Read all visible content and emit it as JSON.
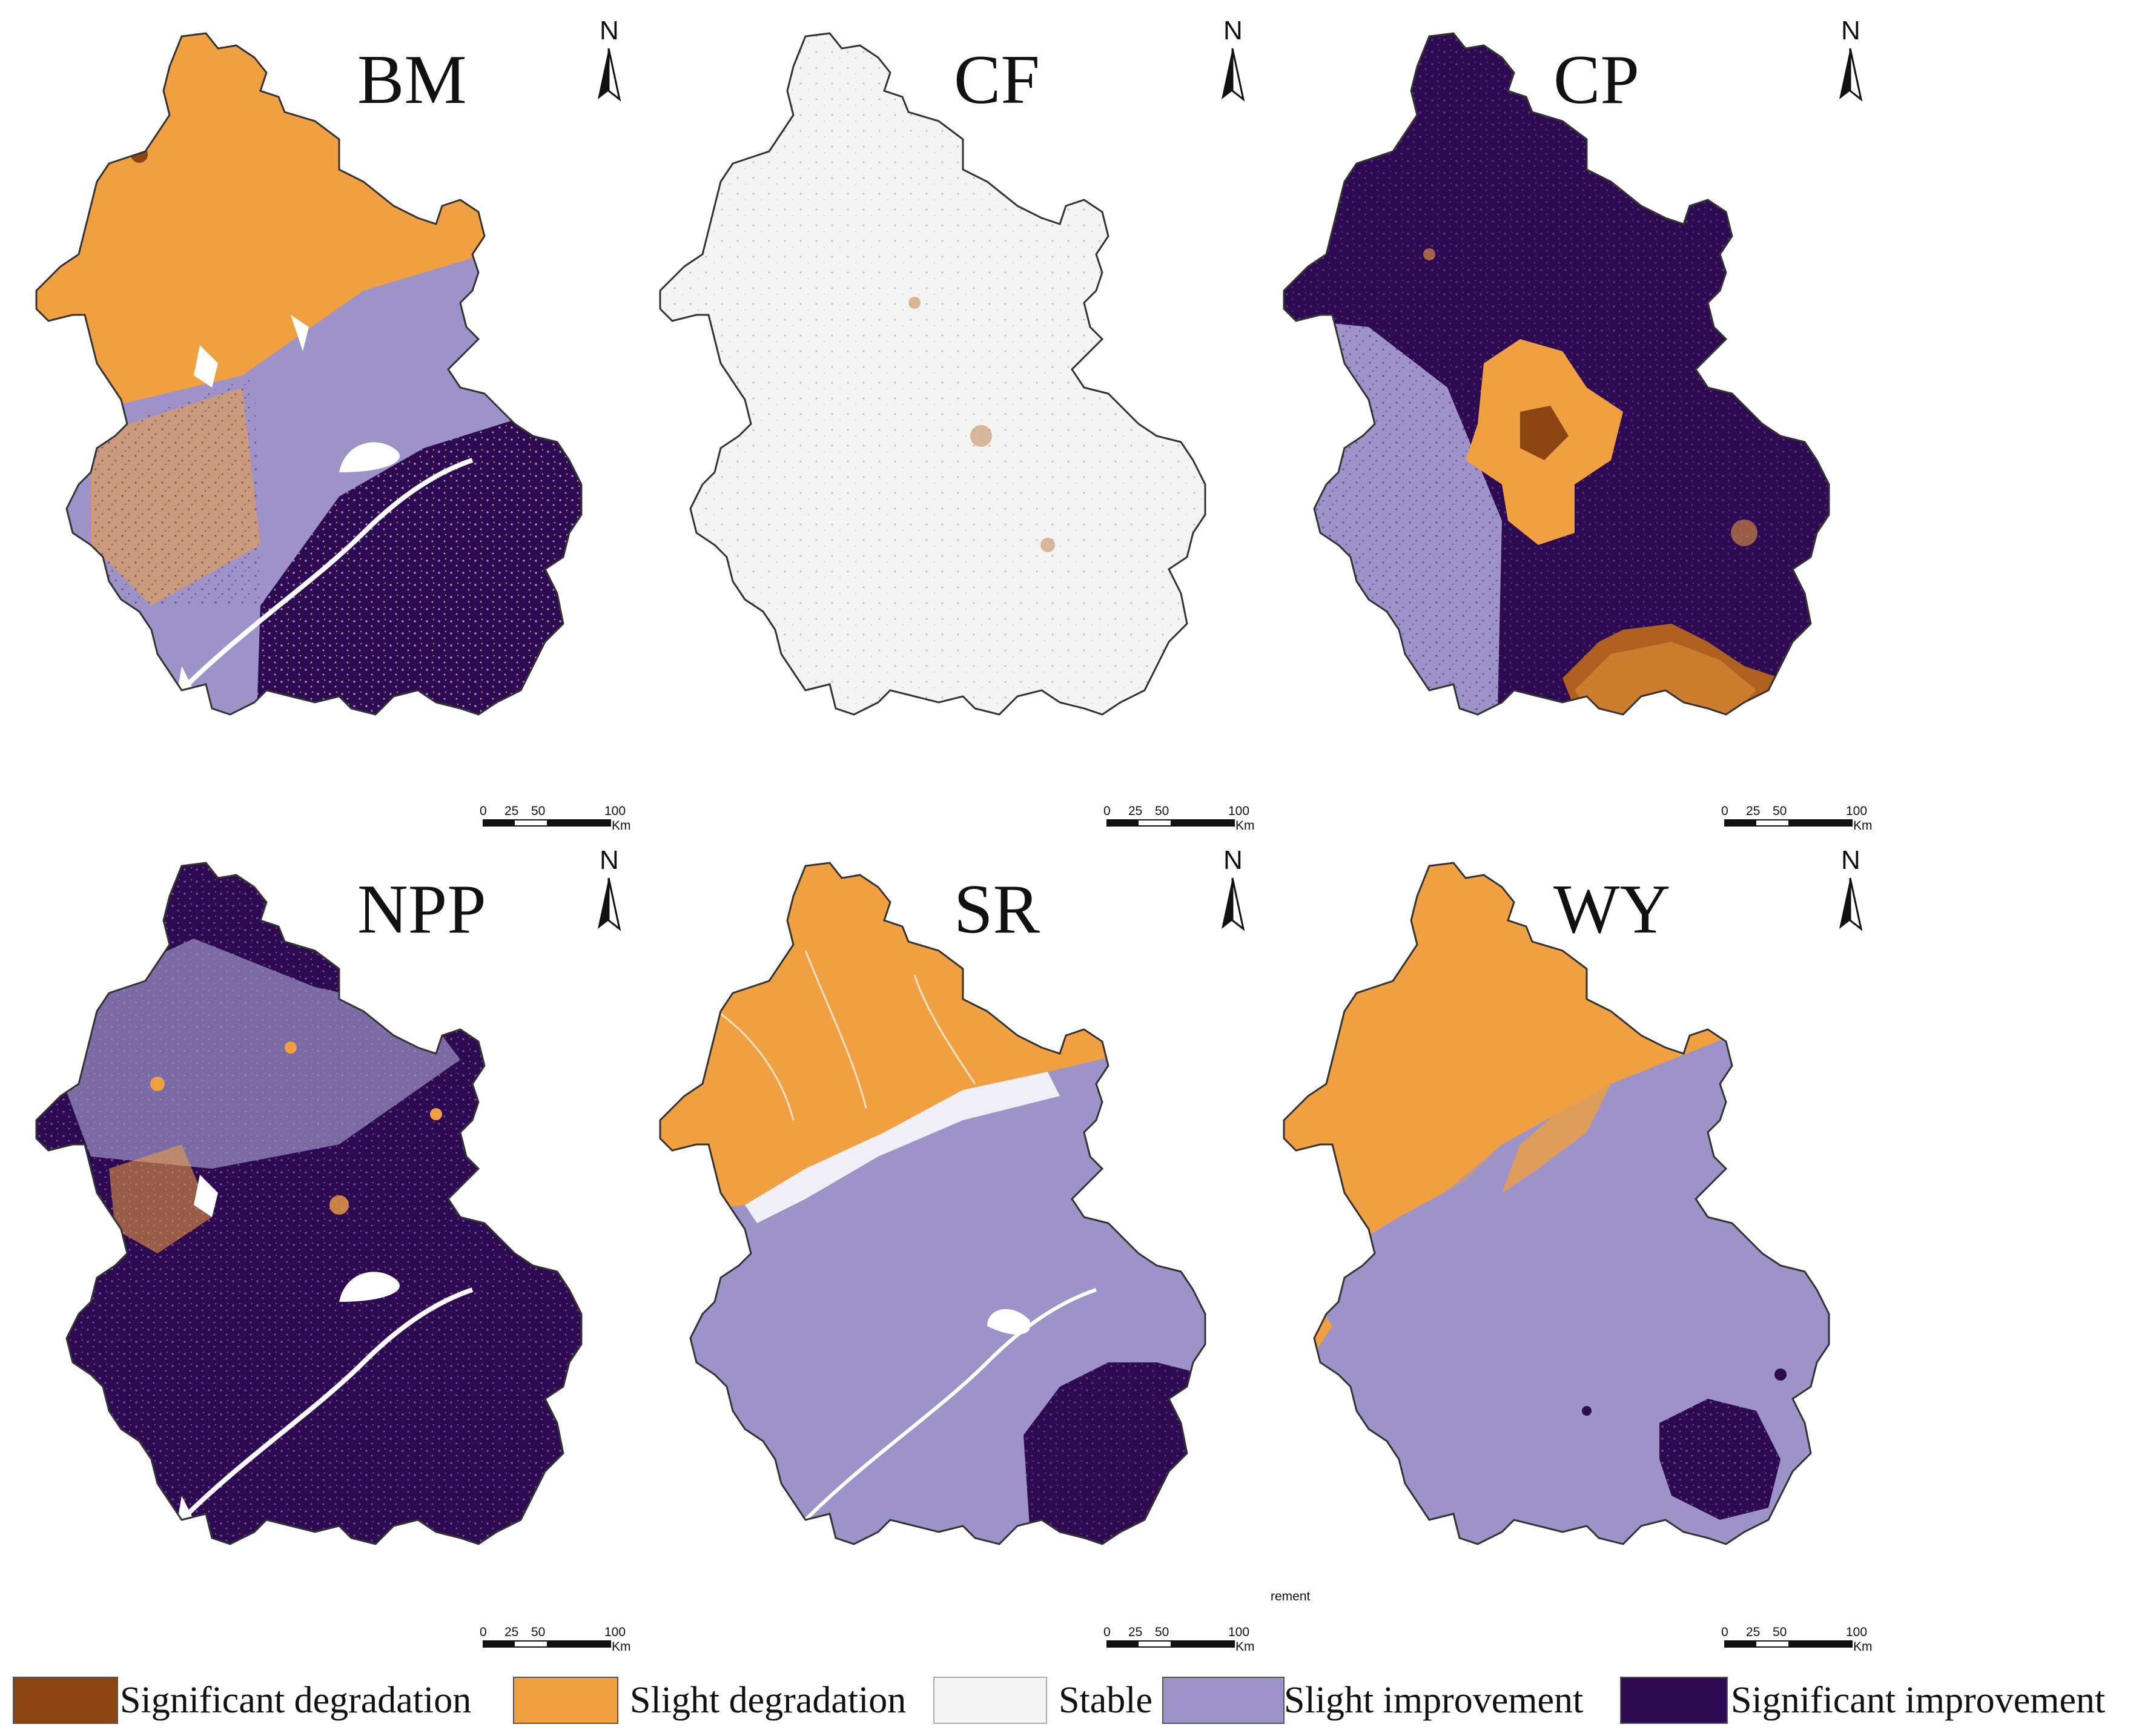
{
  "colors": {
    "significant_degradation": "#8b4513",
    "slight_degradation": "#f0a040",
    "stable": "#f4f4f4",
    "slight_improvement": "#9d93c8",
    "significant_improvement": "#2e0a52",
    "outline": "#333333"
  },
  "north_label": "N",
  "panels": [
    {
      "title": "BM",
      "scale": {
        "ticks": [
          "0",
          "25",
          "50",
          "100"
        ],
        "unit": "Km"
      }
    },
    {
      "title": "CF",
      "scale": {
        "ticks": [
          "0",
          "25",
          "50",
          "100"
        ],
        "unit": "Km"
      }
    },
    {
      "title": "CP",
      "scale": {
        "ticks": [
          "0",
          "25",
          "50",
          "100"
        ],
        "unit": "Km"
      }
    },
    {
      "title": "NPP",
      "scale": {
        "ticks": [
          "0",
          "25",
          "50",
          "100"
        ],
        "unit": "Km"
      }
    },
    {
      "title": "SR",
      "scale": {
        "ticks": [
          "0",
          "25",
          "50",
          "100"
        ],
        "unit": "Km"
      }
    },
    {
      "title": "WY",
      "scale": {
        "ticks": [
          "0",
          "25",
          "50",
          "100"
        ],
        "unit": "Km"
      }
    }
  ],
  "stray_text": "rement",
  "legend": [
    {
      "label": "Significant degradation",
      "color_key": "significant_degradation"
    },
    {
      "label": "Slight degradation",
      "color_key": "slight_degradation"
    },
    {
      "label": "Stable",
      "color_key": "stable"
    },
    {
      "label": "Slight improvement",
      "color_key": "slight_improvement"
    },
    {
      "label": "Significant improvement",
      "color_key": "significant_improvement"
    }
  ]
}
